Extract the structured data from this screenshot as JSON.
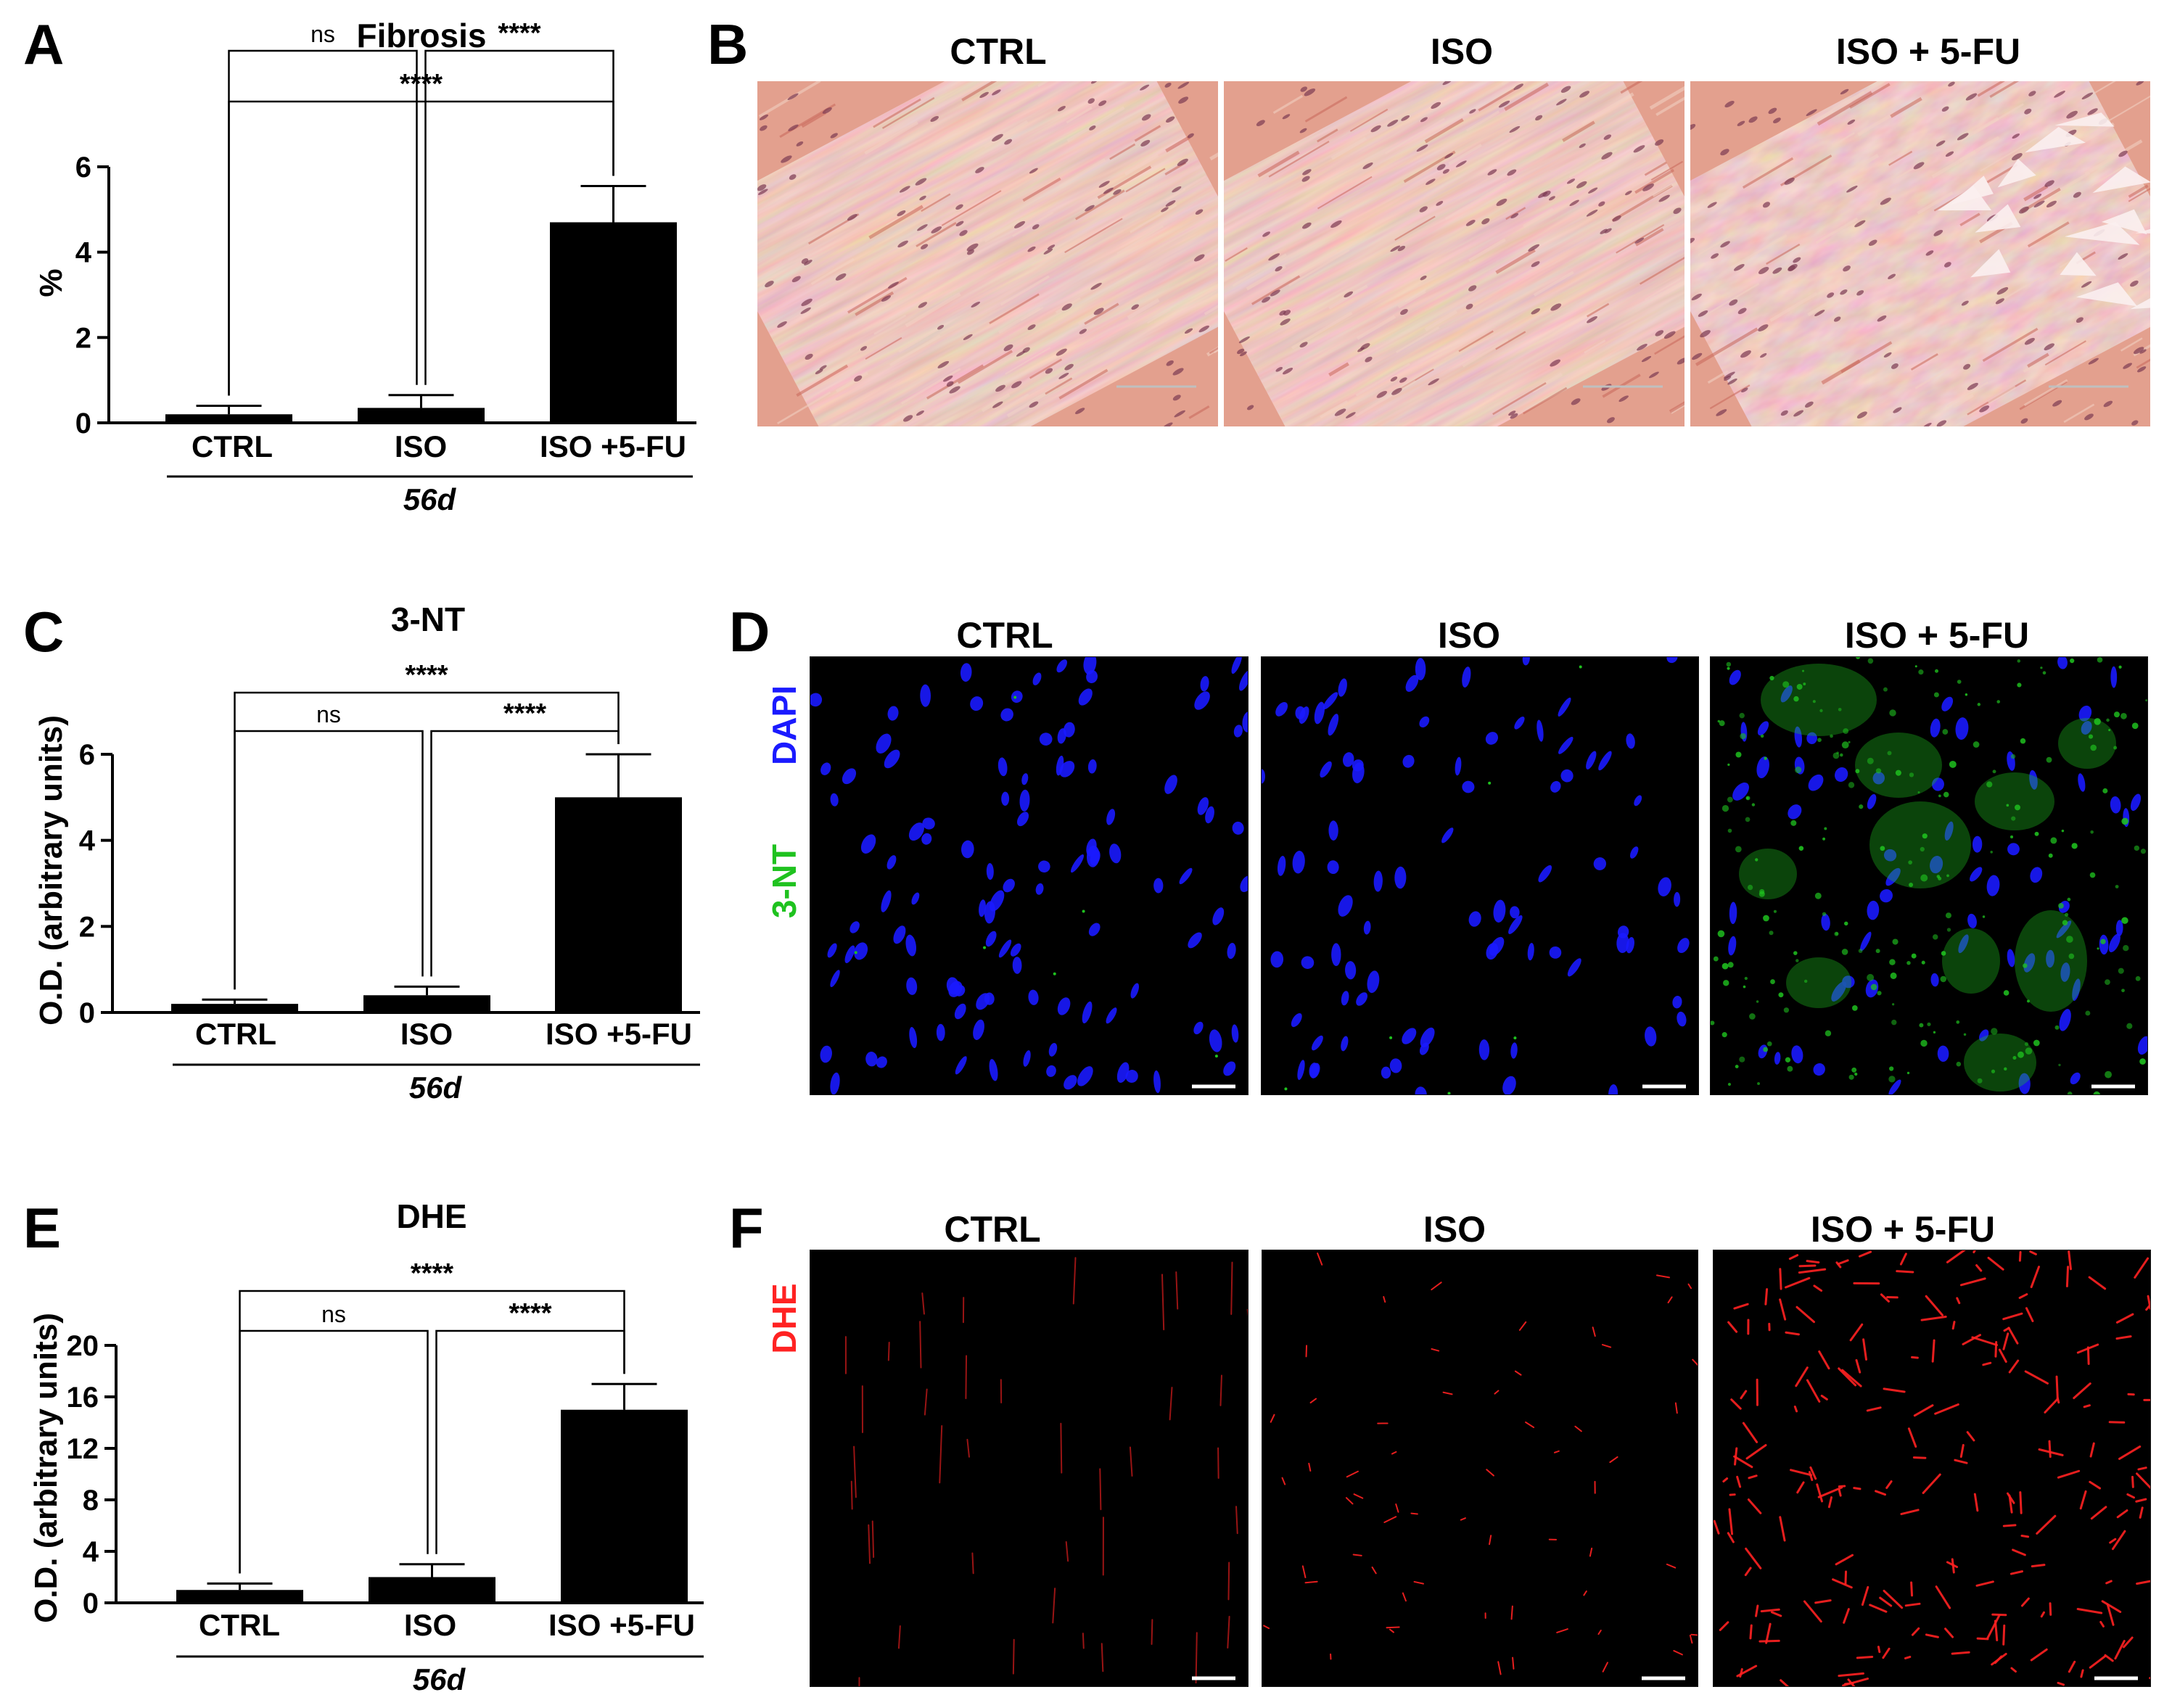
{
  "panel_letters": [
    "A",
    "B",
    "C",
    "D",
    "E",
    "F"
  ],
  "colors": {
    "bar": "#000000",
    "dapi": "#1a1aff",
    "nt3": "#1fc21f",
    "dhe": "#ff2222",
    "he_base": "#e3a08e",
    "fluor_bg": "#000000"
  },
  "chart_data": [
    {
      "type": "bar",
      "title": "Fibrosis",
      "ylabel": "%",
      "xlabel": "56d",
      "categories": [
        "CTRL",
        "ISO",
        "ISO +5-FU"
      ],
      "values": [
        0.2,
        0.35,
        4.7
      ],
      "error": [
        0.2,
        0.3,
        0.85
      ],
      "ylim": [
        0,
        6
      ],
      "yticks": [
        0,
        2,
        4,
        6
      ],
      "comparisons": [
        {
          "groups": [
            "CTRL",
            "ISO +5-FU"
          ],
          "label": "****"
        },
        {
          "groups": [
            "CTRL",
            "ISO"
          ],
          "label": "ns"
        },
        {
          "groups": [
            "ISO",
            "ISO +5-FU"
          ],
          "label": "****"
        }
      ]
    },
    {
      "type": "bar",
      "title": "3-NT",
      "ylabel": "O.D. (arbitrary units)",
      "xlabel": "56d",
      "categories": [
        "CTRL",
        "ISO",
        "ISO +5-FU"
      ],
      "values": [
        0.2,
        0.4,
        5.0
      ],
      "error": [
        0.1,
        0.2,
        1.0
      ],
      "ylim": [
        0,
        6
      ],
      "yticks": [
        0,
        2,
        4,
        6
      ],
      "comparisons": [
        {
          "groups": [
            "CTRL",
            "ISO +5-FU"
          ],
          "label": "****"
        },
        {
          "groups": [
            "CTRL",
            "ISO"
          ],
          "label": "ns"
        },
        {
          "groups": [
            "ISO",
            "ISO +5-FU"
          ],
          "label": "****"
        }
      ]
    },
    {
      "type": "bar",
      "title": "DHE",
      "ylabel": "O.D. (arbitrary units)",
      "xlabel": "56d",
      "categories": [
        "CTRL",
        "ISO",
        "ISO +5-FU"
      ],
      "values": [
        1.0,
        2.0,
        15.0
      ],
      "error": [
        0.5,
        1.0,
        2.0
      ],
      "ylim": [
        0,
        20
      ],
      "yticks": [
        0,
        4,
        8,
        12,
        16,
        20
      ],
      "comparisons": [
        {
          "groups": [
            "CTRL",
            "ISO +5-FU"
          ],
          "label": "****"
        },
        {
          "groups": [
            "CTRL",
            "ISO"
          ],
          "label": "ns"
        },
        {
          "groups": [
            "ISO",
            "ISO +5-FU"
          ],
          "label": "****"
        }
      ]
    }
  ],
  "image_rows": [
    {
      "letter": "B",
      "stain": "he",
      "columns": [
        "CTRL",
        "ISO",
        "ISO + 5-FU"
      ],
      "channel_labels": []
    },
    {
      "letter": "D",
      "stain": "3nt",
      "columns": [
        "CTRL",
        "ISO",
        "ISO + 5-FU"
      ],
      "channel_labels": [
        "DAPI",
        "3-NT"
      ]
    },
    {
      "letter": "F",
      "stain": "dhe",
      "columns": [
        "CTRL",
        "ISO",
        "ISO + 5-FU"
      ],
      "channel_labels": [
        "DHE"
      ]
    }
  ]
}
